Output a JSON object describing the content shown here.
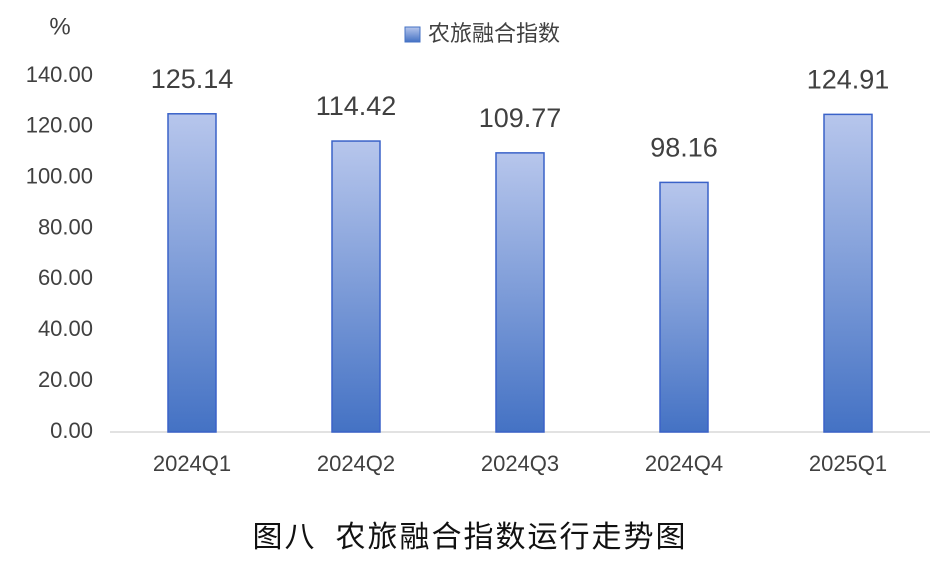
{
  "chart_data": {
    "type": "bar",
    "title": "图八  农旅融合指数运行走势图",
    "ylabel": "%",
    "categories": [
      "2024Q1",
      "2024Q2",
      "2024Q3",
      "2024Q4",
      "2025Q1"
    ],
    "series": [
      {
        "name": "农旅融合指数",
        "color": "#4472c4",
        "values": [
          125.14,
          114.42,
          109.77,
          98.16,
          124.91
        ]
      }
    ],
    "ylim": [
      0,
      140
    ],
    "yticks": [
      {
        "value": 0,
        "label": "0.00"
      },
      {
        "value": 20,
        "label": "20.00"
      },
      {
        "value": 40,
        "label": "40.00"
      },
      {
        "value": 60,
        "label": "60.00"
      },
      {
        "value": 80,
        "label": "80.00"
      },
      {
        "value": 100,
        "label": "100.00"
      },
      {
        "value": 120,
        "label": "120.00"
      },
      {
        "value": 140,
        "label": "140.00"
      }
    ],
    "grid": false,
    "legend": "top"
  }
}
